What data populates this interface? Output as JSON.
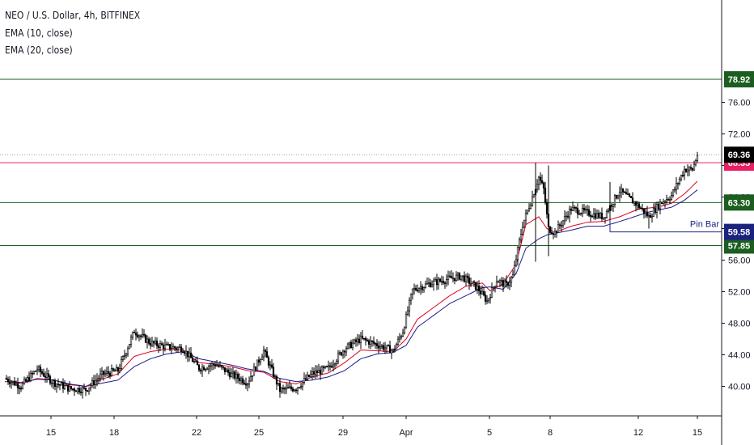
{
  "header": {
    "symbol_line": "NEO / U.S. Dollar, 4h, BITFINEX",
    "indicator1": "EMA (10, close)",
    "indicator2": "EMA (20, close)"
  },
  "colors": {
    "up_candle": "#ffffff",
    "down_candle": "#000000",
    "ema10": "#e0001b",
    "ema20": "#1c1c8c",
    "support_line": "#1b5e20",
    "resistance_line": "#e91e63",
    "pin_bar": "#1a237e",
    "last_price": "#000000"
  },
  "chart_data": {
    "type": "candlestick",
    "y_axis_ticks": [
      "76.00",
      "72.00",
      "68.00",
      "64.00",
      "60.00",
      "56.00",
      "52.00",
      "48.00",
      "44.00",
      "40.00"
    ],
    "x_axis_ticks": [
      "15",
      "18",
      "22",
      "25",
      "29",
      "Apr",
      "5",
      "8",
      "12",
      "15"
    ],
    "ylim": [
      36.6,
      81.5
    ],
    "horizontal_levels": [
      {
        "label": "78.92",
        "value": 78.92,
        "kind": "support"
      },
      {
        "label": "68.35",
        "value": 68.35,
        "kind": "resistance"
      },
      {
        "label": "63.30",
        "value": 63.3,
        "kind": "support"
      },
      {
        "label": "57.85",
        "value": 57.85,
        "kind": "support"
      }
    ],
    "last_price": {
      "label": "69.36",
      "value": 69.36
    },
    "annotations": [
      {
        "text": "Pin Bar",
        "value": 59.58,
        "tag": "59.58",
        "from": "Apr 10",
        "to": "Apr 14"
      }
    ],
    "ema_series": [
      {
        "name": "EMA (10, close)",
        "points": [
          [
            0,
            41.0
          ],
          [
            10,
            40.3
          ],
          [
            20,
            41.0
          ],
          [
            30,
            40.8
          ],
          [
            40,
            40.2
          ],
          [
            50,
            40.0
          ],
          [
            60,
            40.9
          ],
          [
            70,
            41.6
          ],
          [
            80,
            43.8
          ],
          [
            90,
            44.4
          ],
          [
            100,
            44.7
          ],
          [
            110,
            44.6
          ],
          [
            120,
            43.0
          ],
          [
            130,
            42.8
          ],
          [
            140,
            42.5
          ],
          [
            150,
            42.0
          ],
          [
            160,
            41.8
          ],
          [
            170,
            40.6
          ],
          [
            180,
            40.3
          ],
          [
            190,
            41.2
          ],
          [
            200,
            41.7
          ],
          [
            210,
            43.0
          ],
          [
            220,
            44.6
          ],
          [
            230,
            44.5
          ],
          [
            240,
            44.4
          ],
          [
            248,
            46.0
          ],
          [
            255,
            48.5
          ],
          [
            265,
            50.0
          ],
          [
            275,
            51.5
          ],
          [
            285,
            52.7
          ],
          [
            295,
            53.1
          ],
          [
            300,
            52.1
          ],
          [
            308,
            53.0
          ],
          [
            316,
            55.5
          ],
          [
            322,
            60.5
          ],
          [
            330,
            61.5
          ],
          [
            335,
            60.0
          ],
          [
            340,
            59.5
          ],
          [
            350,
            60.3
          ],
          [
            360,
            60.8
          ],
          [
            370,
            60.9
          ],
          [
            380,
            61.5
          ],
          [
            392,
            62.5
          ],
          [
            398,
            62.6
          ],
          [
            405,
            62.8
          ],
          [
            412,
            63.2
          ],
          [
            420,
            64.4
          ],
          [
            428,
            66.0
          ]
        ]
      },
      {
        "name": "EMA (20, close)",
        "points": [
          [
            0,
            40.6
          ],
          [
            10,
            40.5
          ],
          [
            20,
            40.9
          ],
          [
            30,
            40.8
          ],
          [
            40,
            40.3
          ],
          [
            50,
            40.0
          ],
          [
            60,
            40.4
          ],
          [
            70,
            40.8
          ],
          [
            80,
            42.5
          ],
          [
            90,
            43.5
          ],
          [
            100,
            44.1
          ],
          [
            110,
            44.4
          ],
          [
            120,
            43.5
          ],
          [
            130,
            43.1
          ],
          [
            140,
            42.7
          ],
          [
            150,
            42.2
          ],
          [
            160,
            41.9
          ],
          [
            170,
            41.0
          ],
          [
            180,
            40.6
          ],
          [
            190,
            40.8
          ],
          [
            200,
            41.2
          ],
          [
            210,
            42.0
          ],
          [
            220,
            43.5
          ],
          [
            230,
            44.1
          ],
          [
            240,
            44.3
          ],
          [
            248,
            45.2
          ],
          [
            255,
            47.5
          ],
          [
            265,
            49.0
          ],
          [
            275,
            50.5
          ],
          [
            285,
            51.5
          ],
          [
            295,
            52.5
          ],
          [
            300,
            52.6
          ],
          [
            308,
            52.3
          ],
          [
            316,
            54.3
          ],
          [
            322,
            57.5
          ],
          [
            330,
            58.7
          ],
          [
            335,
            59.2
          ],
          [
            340,
            59.4
          ],
          [
            350,
            59.8
          ],
          [
            360,
            60.3
          ],
          [
            370,
            60.3
          ],
          [
            380,
            60.9
          ],
          [
            392,
            61.7
          ],
          [
            398,
            62.1
          ],
          [
            405,
            62.4
          ],
          [
            412,
            62.7
          ],
          [
            420,
            63.6
          ],
          [
            428,
            64.9
          ]
        ]
      }
    ],
    "candle_anchors": [
      [
        0,
        41.0
      ],
      [
        10,
        40.0
      ],
      [
        20,
        42.2
      ],
      [
        30,
        40.5
      ],
      [
        40,
        39.7
      ],
      [
        50,
        39.6
      ],
      [
        60,
        41.5
      ],
      [
        70,
        42.0
      ],
      [
        80,
        47.0
      ],
      [
        90,
        45.5
      ],
      [
        100,
        45.0
      ],
      [
        110,
        44.8
      ],
      [
        120,
        42.3
      ],
      [
        130,
        42.8
      ],
      [
        140,
        41.5
      ],
      [
        150,
        40.5
      ],
      [
        160,
        44.5
      ],
      [
        170,
        39.5
      ],
      [
        180,
        39.8
      ],
      [
        190,
        41.6
      ],
      [
        200,
        42.3
      ],
      [
        210,
        44.8
      ],
      [
        220,
        46.0
      ],
      [
        230,
        45.3
      ],
      [
        240,
        44.5
      ],
      [
        246,
        47.0
      ],
      [
        252,
        52.2
      ],
      [
        262,
        53.0
      ],
      [
        272,
        53.5
      ],
      [
        282,
        54.0
      ],
      [
        292,
        52.5
      ],
      [
        298,
        50.8
      ],
      [
        304,
        53.5
      ],
      [
        310,
        52.8
      ],
      [
        314,
        54.0
      ],
      [
        320,
        60.5
      ],
      [
        326,
        64.0
      ],
      [
        330,
        66.5
      ],
      [
        333,
        65.0
      ],
      [
        336,
        60.0
      ],
      [
        340,
        59.5
      ],
      [
        350,
        62.5
      ],
      [
        360,
        62.0
      ],
      [
        370,
        61.5
      ],
      [
        380,
        64.8
      ],
      [
        392,
        62.8
      ],
      [
        398,
        61.5
      ],
      [
        405,
        63.2
      ],
      [
        412,
        64.2
      ],
      [
        420,
        67.5
      ],
      [
        425,
        67.5
      ],
      [
        428,
        69.36
      ]
    ]
  }
}
